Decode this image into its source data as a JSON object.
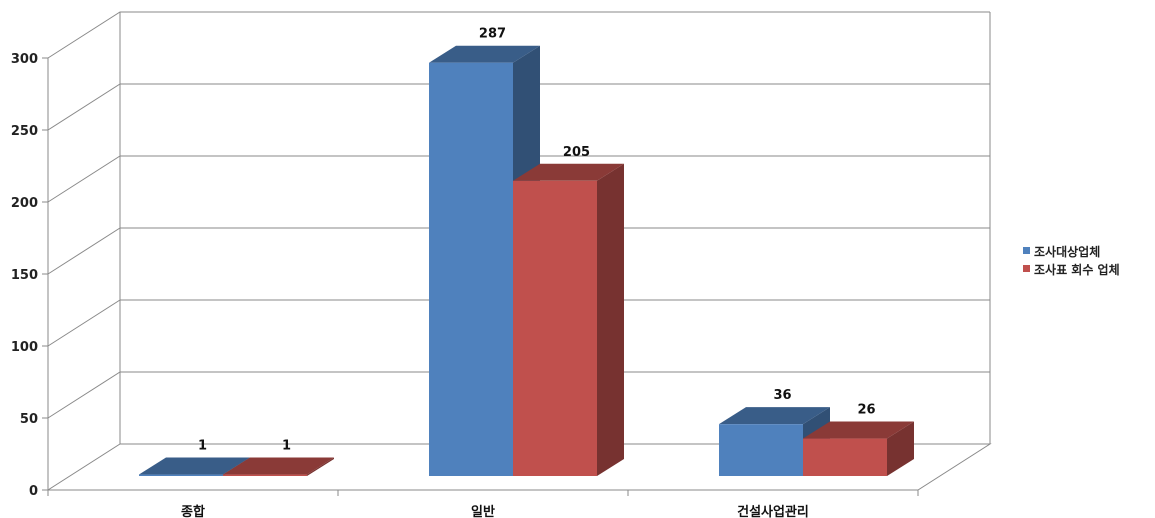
{
  "chart_data": {
    "type": "bar",
    "categories": [
      "종합",
      "일반",
      "건설사업관리"
    ],
    "series": [
      {
        "name": "조사대상업체",
        "values": [
          1,
          287,
          36
        ],
        "color": "#4f81bd"
      },
      {
        "name": "조사표 회수 업체",
        "values": [
          1,
          205,
          26
        ],
        "color": "#c0504d"
      }
    ],
    "ylim": [
      0,
      300
    ],
    "yticks": [
      0,
      50,
      100,
      150,
      200,
      250,
      300
    ],
    "grid": true,
    "three_d": true,
    "legend": "right",
    "data_labels": true
  }
}
